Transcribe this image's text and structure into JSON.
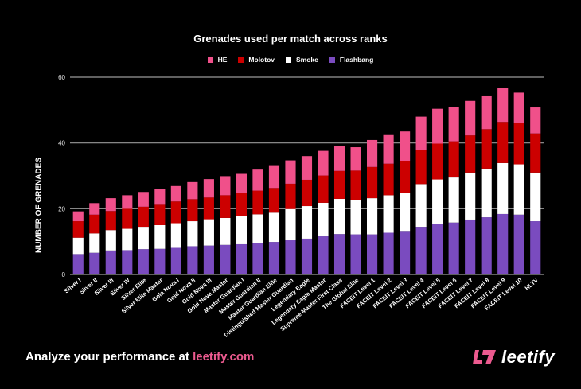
{
  "chart_data": {
    "type": "bar",
    "stacked": true,
    "title": "Grenades used per match across ranks",
    "xlabel": "",
    "ylabel": "NUMBER OF GRENADES",
    "ylim": [
      0,
      60
    ],
    "yticks": [
      0,
      20,
      40,
      60
    ],
    "grid": true,
    "legend_position": "top-center",
    "categories": [
      "Silver I",
      "Silver II",
      "Silver III",
      "Silver IV",
      "Silver Elite",
      "Silver Elite Master",
      "Gola Nova I",
      "Gold Nova II",
      "Gold Nova III",
      "Gold Nova Master",
      "Master Guardian I",
      "Master Guardian II",
      "Master Guardian Elite",
      "Distinguished Master Guardian",
      "Legendary Eagle",
      "Legendary Eagle Master",
      "Supreme Master First Class",
      "The Global Elite",
      "FACEIT Level 1",
      "FACEIT Level 2",
      "FACEIT Level 3",
      "FACEIT Level 4",
      "FACEIT Level 5",
      "FACEIT Level 6",
      "FACEIT Level 7",
      "FACEIT Level 8",
      "FACEIT Level 9",
      "FACEIT Level 10",
      "HLTV"
    ],
    "series": [
      {
        "name": "Flashbang",
        "color": "#7a4bbf",
        "values": [
          6.2,
          6.6,
          7.3,
          7.4,
          7.7,
          7.8,
          8.1,
          8.6,
          8.8,
          9.0,
          9.2,
          9.5,
          9.9,
          10.4,
          10.9,
          11.6,
          12.3,
          12.2,
          12.2,
          12.7,
          13.0,
          14.5,
          15.3,
          15.8,
          16.7,
          17.4,
          18.4,
          18.2,
          16.2
        ]
      },
      {
        "name": "Smoke",
        "color": "#ffffff",
        "values": [
          5.0,
          5.9,
          6.2,
          6.5,
          6.8,
          7.2,
          7.5,
          7.6,
          8.0,
          8.2,
          8.5,
          8.8,
          8.9,
          9.5,
          9.9,
          10.2,
          10.7,
          10.5,
          11.0,
          11.4,
          11.7,
          13.0,
          13.6,
          13.7,
          14.3,
          14.8,
          15.5,
          15.3,
          14.8
        ]
      },
      {
        "name": "Molotov",
        "color": "#cc0000",
        "values": [
          5.0,
          5.7,
          5.8,
          6.1,
          6.1,
          6.2,
          6.6,
          6.7,
          6.6,
          6.9,
          7.1,
          7.2,
          7.5,
          7.7,
          8.0,
          8.3,
          8.5,
          8.9,
          9.5,
          9.6,
          9.8,
          10.4,
          10.9,
          11.0,
          11.3,
          12.0,
          12.5,
          12.7,
          11.9
        ]
      },
      {
        "name": "HE",
        "color": "#f0508a",
        "values": [
          3.0,
          3.5,
          3.9,
          4.1,
          4.5,
          4.7,
          4.7,
          5.2,
          5.6,
          5.8,
          5.8,
          6.4,
          6.7,
          7.1,
          7.2,
          7.5,
          7.6,
          7.1,
          8.2,
          8.7,
          9.0,
          10.1,
          10.6,
          10.5,
          10.5,
          10.0,
          10.3,
          9.1,
          7.9
        ]
      }
    ],
    "legend_order": [
      "HE",
      "Molotov",
      "Smoke",
      "Flashbang"
    ]
  },
  "legend": [
    {
      "label": "HE",
      "color": "#f0508a"
    },
    {
      "label": "Molotov",
      "color": "#cc0000"
    },
    {
      "label": "Smoke",
      "color": "#ffffff"
    },
    {
      "label": "Flashbang",
      "color": "#7a4bbf"
    }
  ],
  "footer": {
    "text": "Analyze your performance at ",
    "link": "leetify.com",
    "brand": "leetify",
    "brand_color": "#ec5a8f"
  }
}
